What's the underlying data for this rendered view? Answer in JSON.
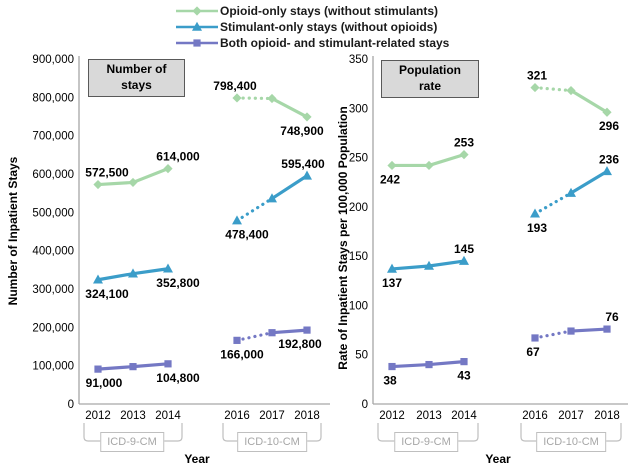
{
  "legend": {
    "items": [
      {
        "label": "Opioid-only stays (without stimulants)",
        "marker": "diamond",
        "color": "#a6d7a8"
      },
      {
        "label": "Stimulant-only stays (without opioids)",
        "marker": "triangle",
        "color": "#3b9dc9"
      },
      {
        "label": "Both opioid- and stimulant-related stays",
        "marker": "square",
        "color": "#7478c4"
      }
    ]
  },
  "colors": {
    "opioid_only": "#a6d7a8",
    "stimulant_only": "#3b9dc9",
    "both": "#7478c4",
    "axis": "#a6a6a6",
    "bracket": "#bfbfbf",
    "title_box_bg": "#d9d9d9"
  },
  "chart_data": [
    {
      "type": "line",
      "title": "Number of stays",
      "x_axis_title": "Year",
      "y_axis_title": "Number of Inpatient Stays",
      "x_labels": [
        "2012",
        "2013",
        "2014",
        "2016",
        "2017",
        "2018"
      ],
      "groups": [
        {
          "label": "ICD-9-CM",
          "years": [
            "2012",
            "2013",
            "2014"
          ]
        },
        {
          "label": "ICD-10-CM",
          "years": [
            "2016",
            "2017",
            "2018"
          ]
        }
      ],
      "ylim": [
        0,
        900000
      ],
      "ytick_labels": [
        "0",
        "100,000",
        "200,000",
        "300,000",
        "400,000",
        "500,000",
        "600,000",
        "700,000",
        "800,000",
        "900,000"
      ],
      "style_note": "dotted segment between 2016 and 2017 (ICD transition); solid elsewhere",
      "series": [
        {
          "id": "opioid-only",
          "name": "Opioid-only stays (without stimulants)",
          "color": "#a6d7a8",
          "marker": "diamond",
          "values": [
            572500,
            578000,
            614000,
            798400,
            797000,
            748900
          ],
          "point_labels": [
            {
              "i": 0,
              "text": "572,500",
              "side": "above",
              "shift": 9
            },
            {
              "i": 2,
              "text": "614,000",
              "side": "above",
              "shift": 10
            },
            {
              "i": 3,
              "text": "798,400",
              "side": "above",
              "shift": -2
            },
            {
              "i": 5,
              "text": "748,900",
              "side": "below",
              "shift": -5
            }
          ]
        },
        {
          "id": "stimulant-only",
          "name": "Stimulant-only stays (without opioids)",
          "color": "#3b9dc9",
          "marker": "triangle",
          "values": [
            324100,
            340000,
            352800,
            478400,
            536000,
            595400
          ],
          "point_labels": [
            {
              "i": 0,
              "text": "324,100",
              "side": "below",
              "shift": 9
            },
            {
              "i": 2,
              "text": "352,800",
              "side": "below",
              "shift": 10
            },
            {
              "i": 3,
              "text": "478,400",
              "side": "below",
              "shift": 10
            },
            {
              "i": 5,
              "text": "595,400",
              "side": "above",
              "shift": -4
            }
          ]
        },
        {
          "id": "both",
          "name": "Both opioid- and stimulant-related stays",
          "color": "#7478c4",
          "marker": "square",
          "values": [
            91000,
            97500,
            104800,
            166000,
            186000,
            192800
          ],
          "point_labels": [
            {
              "i": 0,
              "text": "91,000",
              "side": "below",
              "shift": 6
            },
            {
              "i": 2,
              "text": "104,800",
              "side": "below",
              "shift": 10
            },
            {
              "i": 3,
              "text": "166,000",
              "side": "below",
              "shift": 5
            },
            {
              "i": 5,
              "text": "192,800",
              "side": "below",
              "shift": -7
            }
          ]
        }
      ]
    },
    {
      "type": "line",
      "title": "Population rate",
      "x_axis_title": "Year",
      "y_axis_title": "Rate of Inpatient Stays per 100,000 Population",
      "x_labels": [
        "2012",
        "2013",
        "2014",
        "2016",
        "2017",
        "2018"
      ],
      "groups": [
        {
          "label": "ICD-9-CM",
          "years": [
            "2012",
            "2013",
            "2014"
          ]
        },
        {
          "label": "ICD-10-CM",
          "years": [
            "2016",
            "2017",
            "2018"
          ]
        }
      ],
      "ylim": [
        0,
        350
      ],
      "ytick_labels": [
        "0",
        "50",
        "100",
        "150",
        "200",
        "250",
        "300",
        "350"
      ],
      "style_note": "dotted segment between 2016 and 2017 (ICD transition); solid elsewhere",
      "series": [
        {
          "id": "opioid-only",
          "name": "Opioid-only stays (without stimulants)",
          "color": "#a6d7a8",
          "marker": "diamond",
          "values": [
            242,
            242,
            253,
            321,
            318,
            296
          ],
          "point_labels": [
            {
              "i": 0,
              "text": "242",
              "side": "below",
              "shift": -2
            },
            {
              "i": 2,
              "text": "253",
              "side": "above",
              "shift": 0
            },
            {
              "i": 3,
              "text": "321",
              "side": "above",
              "shift": 2
            },
            {
              "i": 5,
              "text": "296",
              "side": "below",
              "shift": 2
            }
          ]
        },
        {
          "id": "stimulant-only",
          "name": "Stimulant-only stays (without opioids)",
          "color": "#3b9dc9",
          "marker": "triangle",
          "values": [
            137,
            140,
            145,
            193,
            214,
            236
          ],
          "point_labels": [
            {
              "i": 0,
              "text": "137",
              "side": "below",
              "shift": 0
            },
            {
              "i": 2,
              "text": "145",
              "side": "above",
              "shift": 0
            },
            {
              "i": 3,
              "text": "193",
              "side": "below",
              "shift": 2
            },
            {
              "i": 5,
              "text": "236",
              "side": "above",
              "shift": 2
            }
          ]
        },
        {
          "id": "both",
          "name": "Both opioid- and stimulant-related stays",
          "color": "#7478c4",
          "marker": "square",
          "values": [
            38,
            40,
            43,
            67,
            74,
            76
          ],
          "point_labels": [
            {
              "i": 0,
              "text": "38",
              "side": "below",
              "shift": -2
            },
            {
              "i": 2,
              "text": "43",
              "side": "below",
              "shift": 0
            },
            {
              "i": 3,
              "text": "67",
              "side": "below",
              "shift": -2
            },
            {
              "i": 5,
              "text": "76",
              "side": "above",
              "shift": 5
            }
          ]
        }
      ]
    }
  ]
}
